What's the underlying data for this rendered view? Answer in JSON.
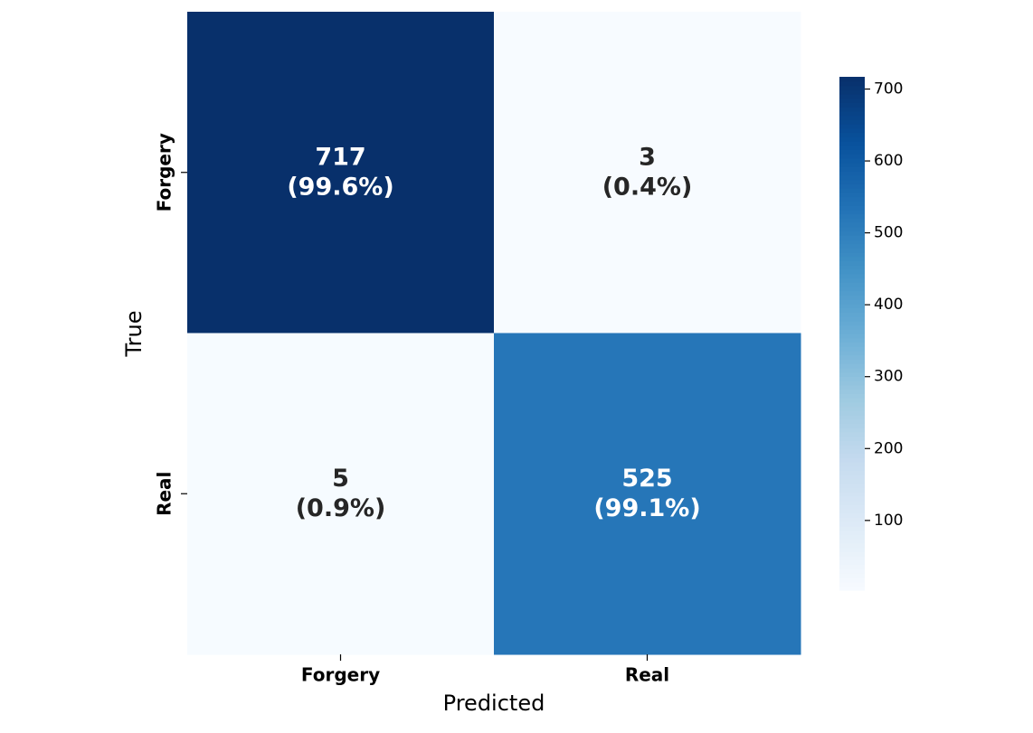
{
  "chart_data": {
    "type": "heatmap",
    "x_label": "Predicted",
    "y_label": "True",
    "x_categories": [
      "Forgery",
      "Real"
    ],
    "y_categories": [
      "Forgery",
      "Real"
    ],
    "values": [
      [
        717,
        3
      ],
      [
        5,
        525
      ]
    ],
    "percent_labels": [
      [
        "(99.6%)",
        "(0.4%)"
      ],
      [
        "(0.9%)",
        "(99.1%)"
      ]
    ],
    "colormap": "Blues",
    "clim": [
      3,
      717
    ],
    "cticks": [
      100,
      200,
      300,
      400,
      500,
      600,
      700
    ]
  }
}
